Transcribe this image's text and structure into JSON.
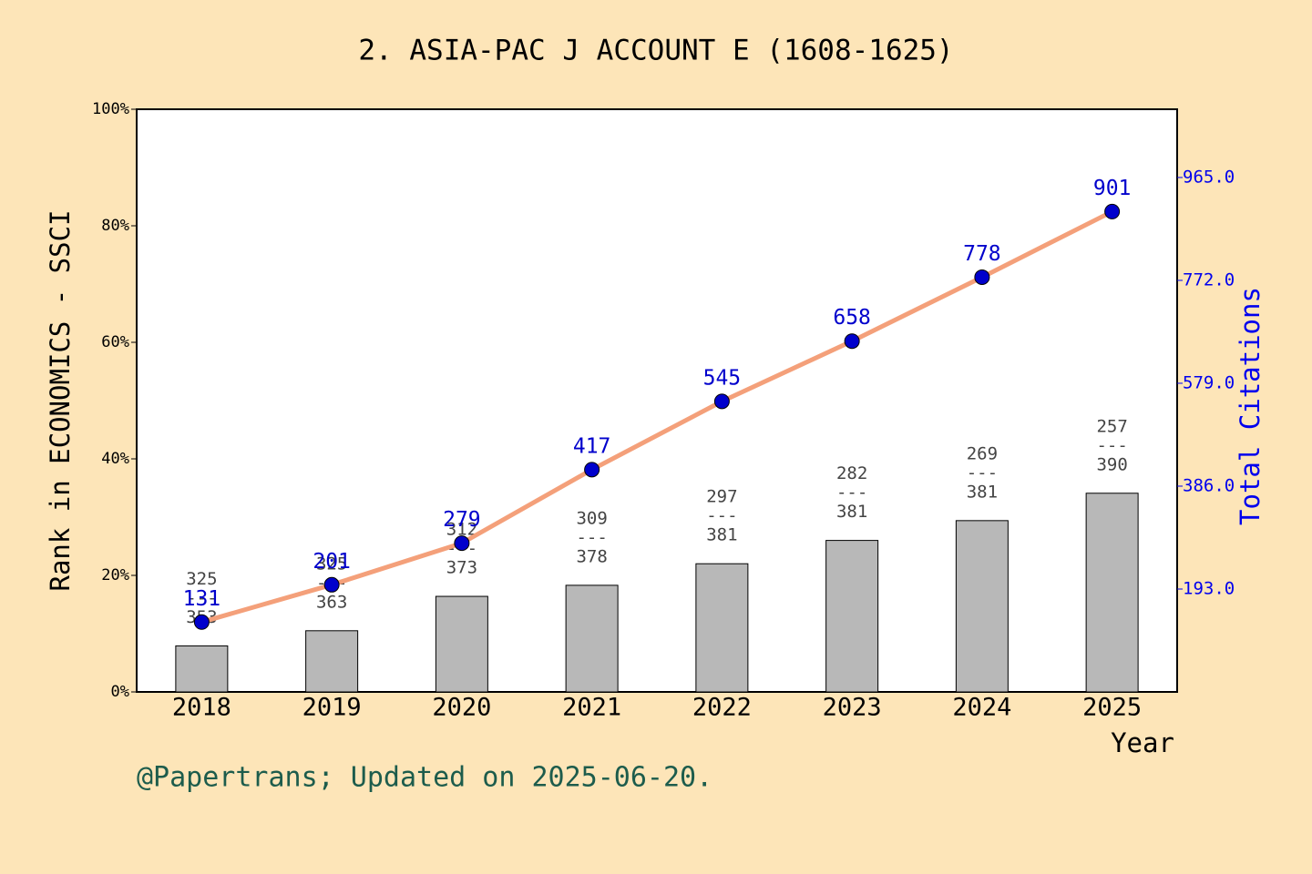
{
  "chart_data": {
    "type": "bar",
    "title": "2. ASIA-PAC J ACCOUNT E (1608-1625)",
    "x_label": "Year",
    "y_label": "Rank in ECONOMICS - SSCI",
    "y2_label": "Total Citations",
    "footer": "@Papertrans; Updated on 2025-06-20.",
    "categories": [
      "2018",
      "2019",
      "2020",
      "2021",
      "2022",
      "2023",
      "2024",
      "2025"
    ],
    "series": [
      {
        "type": "bar",
        "color": "#b8b8b8",
        "values": [
          7.9,
          10.5,
          16.4,
          18.3,
          22.0,
          26.0,
          29.4,
          34.1
        ],
        "ranks": [
          325,
          325,
          312,
          309,
          297,
          282,
          269,
          257
        ],
        "rank_separator": "---",
        "totals": [
          353,
          363,
          373,
          378,
          381,
          381,
          381,
          390
        ]
      },
      {
        "type": "line",
        "axis": "y2",
        "color": "#f4a07a",
        "marker_color": "#0000cc",
        "values": [
          131,
          201,
          279,
          417,
          545,
          658,
          778,
          901
        ]
      }
    ],
    "ylim": [
      0,
      100
    ],
    "yticks": [
      {
        "value": 0,
        "label": "0%"
      },
      {
        "value": 20,
        "label": "20%"
      },
      {
        "value": 40,
        "label": "40%"
      },
      {
        "value": 60,
        "label": "60%"
      },
      {
        "value": 80,
        "label": "80%"
      },
      {
        "value": 100,
        "label": "100%"
      }
    ],
    "y2lim": [
      0,
      1093
    ],
    "y2ticks": [
      {
        "value": 193,
        "label": "193.0"
      },
      {
        "value": 386,
        "label": "386.0"
      },
      {
        "value": 579,
        "label": "579.0"
      },
      {
        "value": 772,
        "label": "772.0"
      },
      {
        "value": 965,
        "label": "965.0"
      }
    ]
  }
}
